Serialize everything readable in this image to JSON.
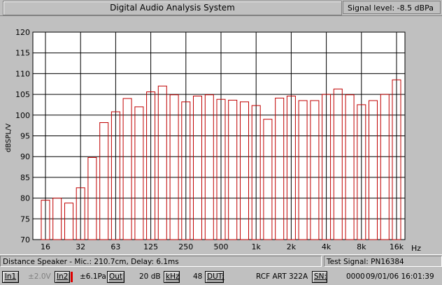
{
  "header": {
    "title": "Digital Audio Analysis System",
    "signal_level": "Signal level: -8.5 dBPa"
  },
  "chart_data": {
    "type": "bar",
    "ylabel": "dBSPL/V",
    "xlabel": "Hz",
    "ylim": [
      70,
      120
    ],
    "yticks": [
      "120",
      "115",
      "110",
      "105",
      "100",
      "95",
      "90",
      "85",
      "80",
      "75",
      "70"
    ],
    "xtick_labels": [
      "16",
      "32",
      "63",
      "125",
      "250",
      "500",
      "1k",
      "2k",
      "4k",
      "8k",
      "16k"
    ],
    "grid": true,
    "bar_color": "#c00000",
    "values": [
      79.5,
      80,
      78.8,
      82.5,
      89.8,
      98.2,
      100.8,
      104,
      102,
      105.6,
      107,
      104.9,
      103.2,
      104.6,
      104.9,
      103.8,
      103.6,
      103.2,
      102.3,
      99,
      104.1,
      104.6,
      103.5,
      103.5,
      105,
      106.3,
      104.9,
      102.5,
      103.5,
      105,
      108.5
    ]
  },
  "status": {
    "distance": "Distance Speaker - Mic.: 210.7cm, Delay: 6.1ms",
    "test_signal": "Test Signal: PN16384"
  },
  "toolbar": {
    "in1": "In1",
    "in1_value": "±2.0V",
    "in2": "In2",
    "in2_value": "±6.1Pa",
    "out": "Out",
    "out_value": "20 dB",
    "khz": "kHz",
    "khz_value": "48",
    "dut": "DUT:",
    "dut_value": "RCF ART 322A",
    "sn": "SN:",
    "sn_value": "0000",
    "datetime": "09/01/06 16:01:39"
  }
}
